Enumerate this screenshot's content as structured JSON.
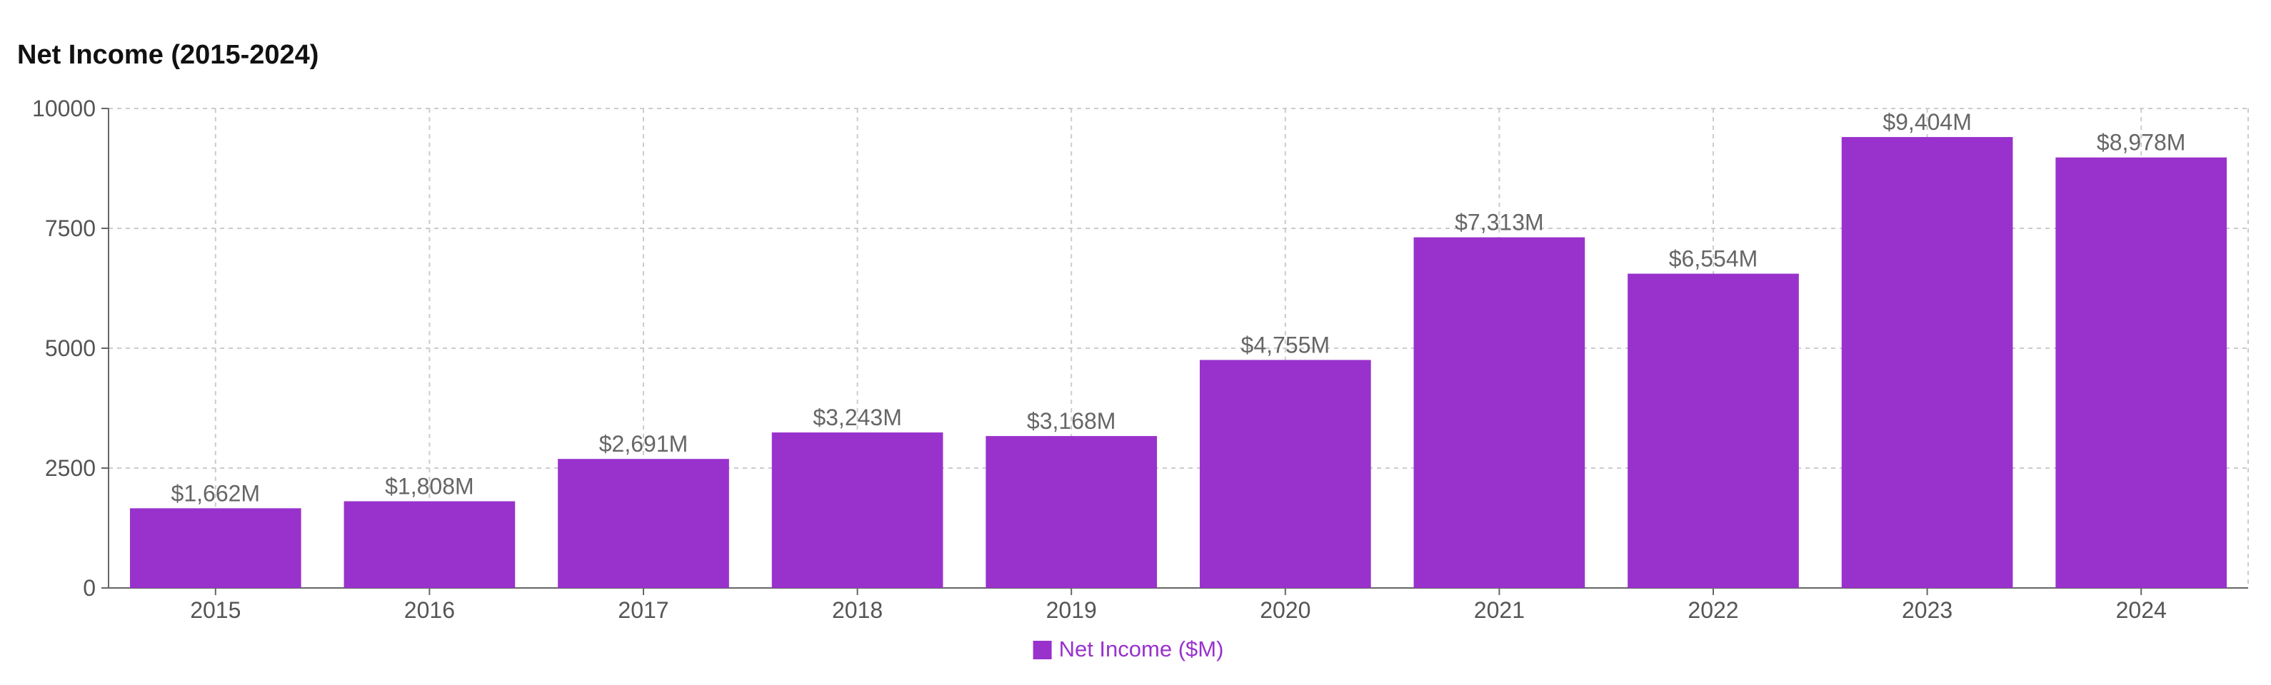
{
  "chart_data": {
    "type": "bar",
    "title": "Net Income (2015-2024)",
    "categories": [
      "2015",
      "2016",
      "2017",
      "2018",
      "2019",
      "2020",
      "2021",
      "2022",
      "2023",
      "2024"
    ],
    "series": [
      {
        "name": "Net Income ($M)",
        "values": [
          1662,
          1808,
          2691,
          3243,
          3168,
          4755,
          7313,
          6554,
          9404,
          8978
        ],
        "data_labels": [
          "$1,662M",
          "$1,808M",
          "$2,691M",
          "$3,243M",
          "$3,168M",
          "$4,755M",
          "$7,313M",
          "$6,554M",
          "$9,404M",
          "$8,978M"
        ]
      }
    ],
    "ylim": [
      0,
      10000
    ],
    "yticks": [
      0,
      2500,
      5000,
      7500,
      10000
    ],
    "ytick_labels": [
      "0",
      "2500",
      "5000",
      "7500",
      "10000"
    ],
    "xlabel": "",
    "ylabel": "",
    "grid": true,
    "legend_position": "bottom-center"
  },
  "colors": {
    "bar": "#9932CC",
    "legend_text": "#9932CC",
    "grid": "#cccccc",
    "axis": "#666666"
  }
}
